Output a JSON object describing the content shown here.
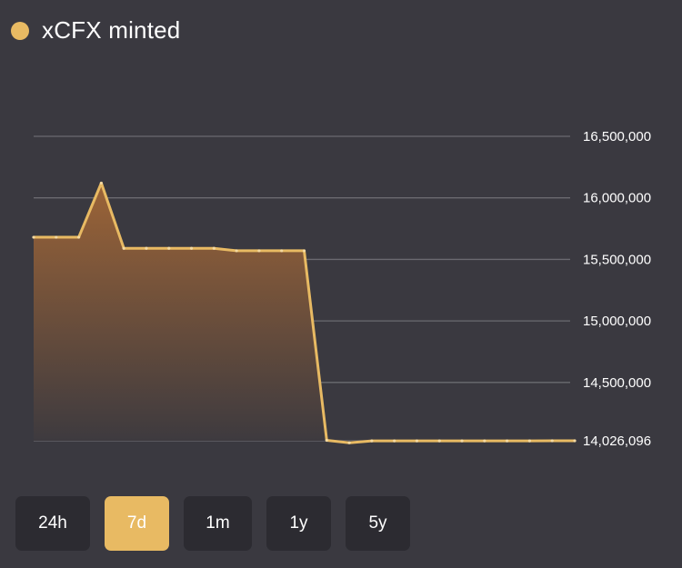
{
  "legend": {
    "label": "xCFX minted",
    "color": "#e8ba63"
  },
  "range_buttons": [
    {
      "label": "24h",
      "active": false
    },
    {
      "label": "7d",
      "active": true
    },
    {
      "label": "1m",
      "active": false
    },
    {
      "label": "1y",
      "active": false
    },
    {
      "label": "5y",
      "active": false
    }
  ],
  "colors": {
    "background": "#3a3940",
    "line": "#e8ba63",
    "area_top": "#9c6437",
    "area_bottom": "#3d3a3f",
    "grid": "#6b6a70",
    "button_bg": "#2c2b31",
    "button_active_bg": "#e8ba63"
  },
  "chart_data": {
    "type": "area",
    "series": [
      {
        "values": [
          15680000,
          15680000,
          15680000,
          16120000,
          15590000,
          15590000,
          15590000,
          15590000,
          15590000,
          15570000,
          15570000,
          15570000,
          15570000,
          14030000,
          14010000,
          14025000,
          14025000,
          14025000,
          14025000,
          14025000,
          14025000,
          14025000,
          14025000,
          14026096,
          14026096
        ]
      }
    ],
    "y_ticks": [
      "16,500,000",
      "16,000,000",
      "15,500,000",
      "15,000,000",
      "14,500,000",
      "14,026,096"
    ],
    "y_tick_values": [
      16500000,
      16000000,
      15500000,
      15000000,
      14500000,
      14026096
    ],
    "ylim": [
      14026096,
      16500000
    ],
    "grid": true,
    "y_axis_position": "right",
    "title": "",
    "xlabel": "",
    "ylabel": ""
  }
}
